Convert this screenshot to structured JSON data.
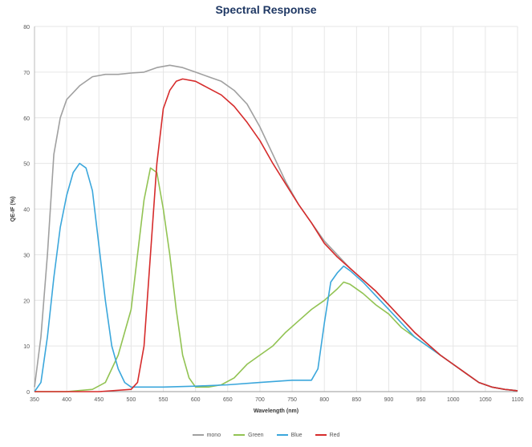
{
  "chart_data": {
    "type": "line",
    "title": "Spectral Response",
    "xlabel": "Wavelength (nm)",
    "ylabel": "QE-IF (%)",
    "xlim": [
      350,
      1100
    ],
    "ylim": [
      0,
      80
    ],
    "xticks": [
      350,
      400,
      450,
      500,
      550,
      600,
      650,
      700,
      750,
      800,
      850,
      900,
      950,
      1000,
      1050,
      1100
    ],
    "yticks": [
      0,
      10,
      20,
      30,
      40,
      50,
      60,
      70,
      80
    ],
    "grid": true,
    "legend_position": "bottom",
    "series": [
      {
        "name": "mono",
        "color": "#a0a0a0",
        "points": [
          [
            350,
            1
          ],
          [
            360,
            12
          ],
          [
            370,
            30
          ],
          [
            380,
            52
          ],
          [
            390,
            60
          ],
          [
            400,
            64
          ],
          [
            420,
            67
          ],
          [
            440,
            69
          ],
          [
            460,
            69.5
          ],
          [
            480,
            69.5
          ],
          [
            500,
            69.8
          ],
          [
            520,
            70
          ],
          [
            540,
            71
          ],
          [
            560,
            71.5
          ],
          [
            580,
            71
          ],
          [
            600,
            70
          ],
          [
            620,
            69
          ],
          [
            640,
            68
          ],
          [
            660,
            66
          ],
          [
            680,
            63
          ],
          [
            700,
            58
          ],
          [
            720,
            52
          ],
          [
            740,
            46
          ],
          [
            760,
            41
          ],
          [
            780,
            37
          ],
          [
            800,
            33
          ],
          [
            820,
            30
          ],
          [
            840,
            27
          ],
          [
            860,
            24.5
          ],
          [
            880,
            22
          ],
          [
            900,
            19
          ],
          [
            920,
            16
          ],
          [
            940,
            13
          ],
          [
            960,
            10.5
          ],
          [
            980,
            8
          ],
          [
            1000,
            6
          ],
          [
            1020,
            4
          ],
          [
            1040,
            2
          ],
          [
            1060,
            1
          ],
          [
            1080,
            0.5
          ],
          [
            1100,
            0.2
          ]
        ]
      },
      {
        "name": "Green",
        "color": "#92c353",
        "points": [
          [
            350,
            0
          ],
          [
            400,
            0
          ],
          [
            440,
            0.5
          ],
          [
            460,
            2
          ],
          [
            480,
            8
          ],
          [
            500,
            18
          ],
          [
            510,
            30
          ],
          [
            520,
            42
          ],
          [
            530,
            49
          ],
          [
            540,
            48
          ],
          [
            550,
            40
          ],
          [
            560,
            30
          ],
          [
            570,
            18
          ],
          [
            580,
            8
          ],
          [
            590,
            3
          ],
          [
            600,
            1
          ],
          [
            620,
            1
          ],
          [
            640,
            1.5
          ],
          [
            660,
            3
          ],
          [
            680,
            6
          ],
          [
            700,
            8
          ],
          [
            720,
            10
          ],
          [
            740,
            13
          ],
          [
            760,
            15.5
          ],
          [
            780,
            18
          ],
          [
            800,
            20
          ],
          [
            820,
            22.5
          ],
          [
            830,
            24
          ],
          [
            840,
            23.5
          ],
          [
            860,
            21.5
          ],
          [
            880,
            19
          ],
          [
            900,
            17
          ],
          [
            920,
            14
          ],
          [
            940,
            12
          ],
          [
            960,
            10
          ],
          [
            980,
            8
          ],
          [
            1000,
            6
          ],
          [
            1020,
            4
          ],
          [
            1040,
            2
          ],
          [
            1060,
            1
          ],
          [
            1080,
            0.5
          ],
          [
            1100,
            0.2
          ]
        ]
      },
      {
        "name": "Blue",
        "color": "#3ba7dc",
        "points": [
          [
            350,
            0
          ],
          [
            360,
            2
          ],
          [
            370,
            12
          ],
          [
            380,
            25
          ],
          [
            390,
            36
          ],
          [
            400,
            43
          ],
          [
            410,
            48
          ],
          [
            420,
            50
          ],
          [
            430,
            49
          ],
          [
            440,
            44
          ],
          [
            450,
            32
          ],
          [
            460,
            20
          ],
          [
            470,
            10
          ],
          [
            480,
            5
          ],
          [
            490,
            2
          ],
          [
            500,
            1
          ],
          [
            550,
            1
          ],
          [
            600,
            1.2
          ],
          [
            650,
            1.5
          ],
          [
            700,
            2
          ],
          [
            750,
            2.5
          ],
          [
            780,
            2.5
          ],
          [
            790,
            5
          ],
          [
            800,
            15
          ],
          [
            810,
            24
          ],
          [
            820,
            26
          ],
          [
            830,
            27.5
          ],
          [
            840,
            26.5
          ],
          [
            860,
            24
          ],
          [
            880,
            21
          ],
          [
            900,
            18
          ],
          [
            920,
            15
          ],
          [
            940,
            12
          ],
          [
            960,
            10
          ],
          [
            980,
            8
          ],
          [
            1000,
            6
          ],
          [
            1020,
            4
          ],
          [
            1040,
            2
          ],
          [
            1060,
            1
          ],
          [
            1080,
            0.5
          ],
          [
            1100,
            0.2
          ]
        ]
      },
      {
        "name": "Red",
        "color": "#d62b2b",
        "points": [
          [
            350,
            0
          ],
          [
            450,
            0
          ],
          [
            500,
            0.5
          ],
          [
            510,
            2
          ],
          [
            520,
            10
          ],
          [
            530,
            30
          ],
          [
            540,
            50
          ],
          [
            550,
            62
          ],
          [
            560,
            66
          ],
          [
            570,
            68
          ],
          [
            580,
            68.5
          ],
          [
            600,
            68
          ],
          [
            620,
            66.5
          ],
          [
            640,
            65
          ],
          [
            660,
            62.5
          ],
          [
            680,
            59
          ],
          [
            700,
            55
          ],
          [
            720,
            50
          ],
          [
            740,
            45.5
          ],
          [
            760,
            41
          ],
          [
            780,
            37
          ],
          [
            800,
            32.5
          ],
          [
            820,
            29.5
          ],
          [
            840,
            27
          ],
          [
            860,
            24.5
          ],
          [
            880,
            22
          ],
          [
            900,
            19
          ],
          [
            920,
            16
          ],
          [
            940,
            13
          ],
          [
            960,
            10.5
          ],
          [
            980,
            8
          ],
          [
            1000,
            6
          ],
          [
            1020,
            4
          ],
          [
            1040,
            2
          ],
          [
            1060,
            1
          ],
          [
            1080,
            0.5
          ],
          [
            1100,
            0.2
          ]
        ]
      }
    ]
  }
}
